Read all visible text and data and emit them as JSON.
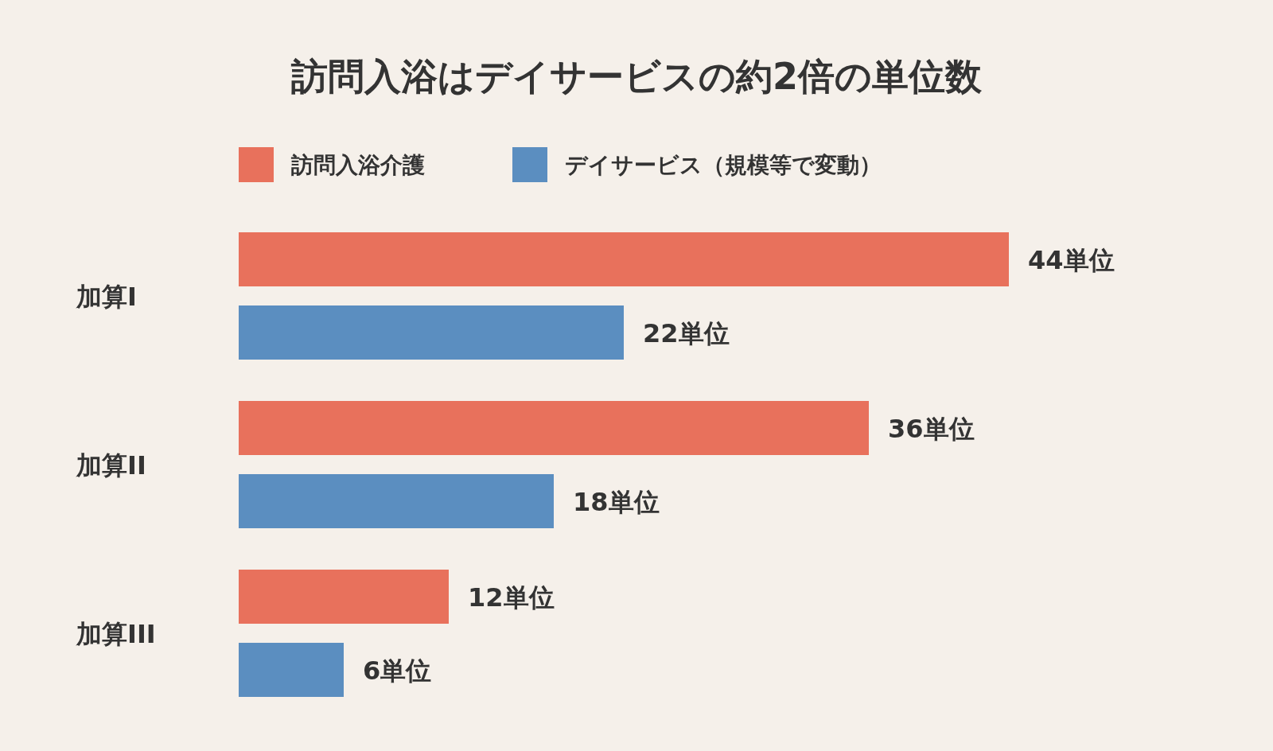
{
  "chart_data": {
    "type": "bar",
    "orientation": "horizontal",
    "title": "訪問入浴はデイサービスの約2倍の単位数",
    "categories": [
      "加算I",
      "加算II",
      "加算III"
    ],
    "series": [
      {
        "name": "訪問入浴介護",
        "color": "#e8715c",
        "values": [
          44,
          36,
          12
        ],
        "value_labels": [
          "44単位",
          "36単位",
          "12単位"
        ]
      },
      {
        "name": "デイサービス（規模等で変動）",
        "color": "#5b8ec0",
        "values": [
          22,
          18,
          6
        ],
        "value_labels": [
          "22単位",
          "18単位",
          "6単位"
        ]
      }
    ],
    "legend": "top left"
  }
}
